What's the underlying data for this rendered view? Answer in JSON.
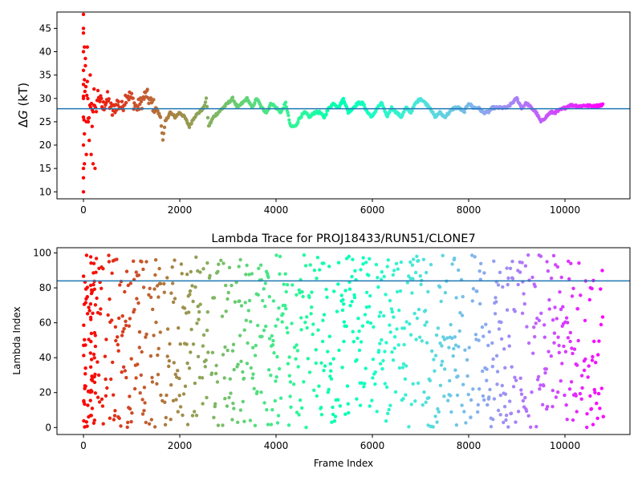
{
  "chart_data": [
    {
      "type": "scatter",
      "title": "",
      "xlabel": "",
      "ylabel": "ΔG (kT)",
      "ylabel_main": "Δ",
      "ylabel_italic": "G",
      "ylabel_rest": " (kT)",
      "xlim": [
        -550,
        11350
      ],
      "ylim": [
        8.5,
        48.5
      ],
      "xticks": [
        0,
        2000,
        4000,
        6000,
        8000,
        10000
      ],
      "yticks": [
        10,
        15,
        20,
        25,
        30,
        35,
        40,
        45
      ],
      "hline": 27.8,
      "hline_color": "#1f77b4",
      "colormap": "rainbow (reversed: red at frame 0, purple at last frame)",
      "series": [
        {
          "description": "free energy estimate per frame",
          "x": [
            0,
            20,
            40,
            60,
            80,
            100,
            150,
            200,
            250,
            300,
            400,
            500,
            600,
            700,
            800,
            900,
            1000,
            1100,
            1200,
            1300,
            1400,
            1500,
            1600,
            1650,
            1700,
            1800,
            1900,
            2000,
            2100,
            2200,
            2300,
            2400,
            2500,
            2550,
            2600,
            2700,
            2800,
            2900,
            3000,
            3100,
            3200,
            3300,
            3400,
            3500,
            3600,
            3700,
            3800,
            3900,
            4000,
            4100,
            4200,
            4300,
            4400,
            4500,
            4600,
            4700,
            4800,
            4900,
            5000,
            5100,
            5200,
            5300,
            5400,
            5500,
            5600,
            5700,
            5800,
            5900,
            6000,
            6100,
            6200,
            6300,
            6400,
            6500,
            6600,
            6700,
            6800,
            6900,
            7000,
            7100,
            7200,
            7300,
            7400,
            7500,
            7600,
            7700,
            7800,
            7900,
            8000,
            8100,
            8200,
            8300,
            8400,
            8500,
            8600,
            8700,
            8800,
            8900,
            9000,
            9100,
            9200,
            9300,
            9400,
            9500,
            9600,
            9700,
            9800,
            9900,
            10000,
            10100,
            10200,
            10300,
            10400,
            10500,
            10600,
            10700,
            10800
          ],
          "y": [
            30,
            22,
            38,
            26,
            33,
            25,
            29,
            28,
            27,
            31,
            28,
            30,
            27,
            29,
            28,
            31,
            30,
            28,
            29,
            31,
            29,
            28,
            26,
            21,
            25,
            27,
            26,
            27,
            26,
            24,
            26,
            27,
            28,
            30,
            24,
            26,
            27,
            28,
            29,
            30,
            28,
            29,
            30,
            28,
            30,
            28,
            27,
            29,
            28,
            27,
            29,
            24,
            24,
            26,
            27,
            26,
            27,
            27,
            26,
            28,
            29,
            28,
            30,
            27,
            28,
            29,
            29,
            27,
            26,
            28,
            29,
            26,
            28,
            27,
            26,
            28,
            27,
            29,
            30,
            29,
            28,
            26,
            27,
            26,
            27,
            28,
            28,
            27,
            29,
            28,
            28,
            27,
            27,
            28,
            28,
            28,
            28,
            29,
            30,
            28,
            29,
            28,
            27,
            25,
            26,
            27,
            27,
            27.5,
            28,
            28.5,
            28.5,
            28.3,
            28.5,
            28.4,
            28.3,
            28.5,
            28.6
          ]
        }
      ],
      "early_scatter": {
        "description": "sparse early-frame points",
        "x": [
          0,
          0,
          0,
          0,
          0,
          0,
          0,
          0,
          0,
          0,
          0,
          0,
          20,
          20,
          20,
          40,
          60,
          80,
          100,
          120,
          140,
          160,
          180,
          200,
          220,
          240
        ],
        "y": [
          48,
          45,
          44,
          40,
          36,
          33,
          30,
          26,
          20,
          15,
          13,
          10,
          41,
          34,
          16,
          37,
          18,
          41,
          25,
          21,
          35,
          18,
          24,
          16,
          32,
          15
        ]
      }
    },
    {
      "type": "scatter",
      "title": "Lambda Trace for PROJ18433/RUN51/CLONE7",
      "xlabel": "Frame Index",
      "ylabel": "Lambda Index",
      "xlim": [
        -550,
        11350
      ],
      "ylim": [
        -4,
        103
      ],
      "xticks": [
        0,
        2000,
        4000,
        6000,
        8000,
        10000
      ],
      "yticks": [
        0,
        20,
        40,
        60,
        80,
        100
      ],
      "hline": 84,
      "hline_color": "#1f77b4",
      "colormap": "rainbow (reversed: red at frame 0, purple at last frame)",
      "frames": [
        0,
        10800
      ],
      "lambda_range": [
        0,
        99
      ]
    }
  ]
}
